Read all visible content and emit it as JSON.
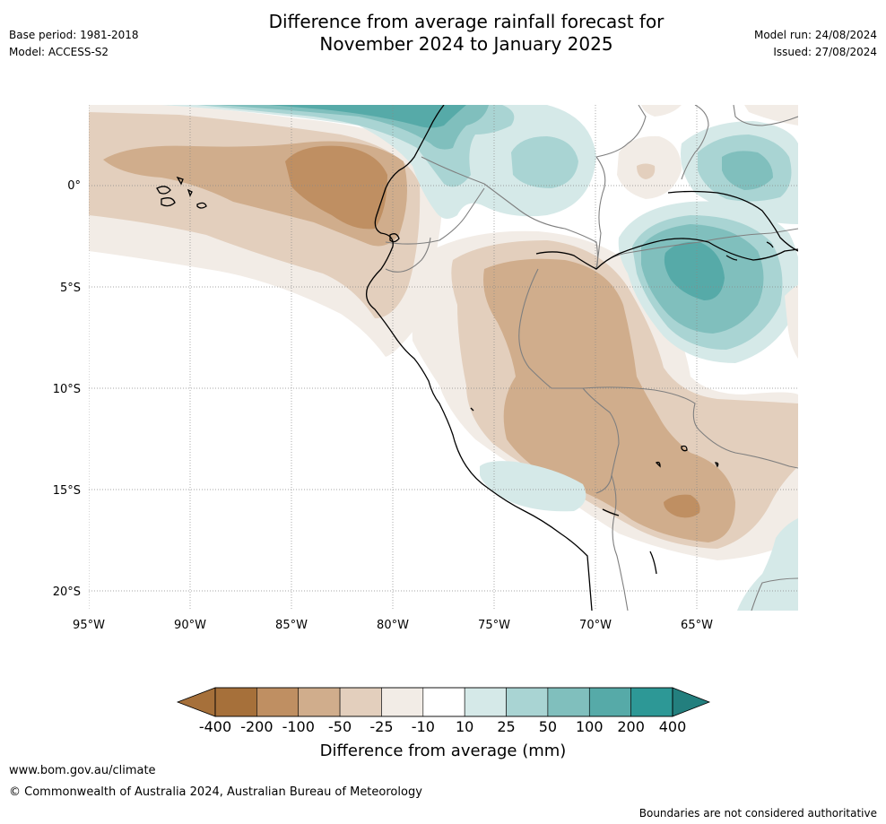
{
  "header": {
    "title_line1": "Difference from average rainfall forecast for",
    "title_line2": "November 2024 to January 2025",
    "base_period": "Base period: 1981-2018",
    "model": "Model: ACCESS-S2",
    "model_run": "Model run: 24/08/2024",
    "issued": "Issued: 27/08/2024"
  },
  "map": {
    "lat_labels": [
      "0°",
      "5°S",
      "10°S",
      "15°S",
      "20°S"
    ],
    "lon_labels": [
      "95°W",
      "90°W",
      "85°W",
      "80°W",
      "75°W",
      "70°W",
      "65°W"
    ],
    "colors": {
      "very_dry": "#a6703a",
      "dry200": "#bf8f62",
      "dry100": "#d0ad8c",
      "dry50": "#e3cfbd",
      "dry25": "#f2ece6",
      "neutral": "#ffffff",
      "wet10": "#d5e9e8",
      "wet25": "#a9d4d3",
      "wet50": "#80bfbd",
      "wet100": "#56aaa8",
      "wet200": "#2d9896",
      "very_wet": "#237f7e",
      "coast": "#000000",
      "border": "#7f7f7f"
    }
  },
  "colorbar": {
    "labels": [
      "-400",
      "-200",
      "-100",
      "-50",
      "-25",
      "-10",
      "10",
      "25",
      "50",
      "100",
      "200",
      "400"
    ],
    "colors": [
      "#a6703a",
      "#bf8f62",
      "#d0ad8c",
      "#e3cfbd",
      "#f2ece6",
      "#ffffff",
      "#d5e9e8",
      "#a9d4d3",
      "#80bfbd",
      "#56aaa8",
      "#2d9896"
    ],
    "title": "Difference from average (mm)"
  },
  "footer": {
    "url": "www.bom.gov.au/climate",
    "copyright": "© Commonwealth of Australia 2024, Australian Bureau of Meteorology",
    "disclaimer": "Boundaries are not considered authoritative"
  }
}
